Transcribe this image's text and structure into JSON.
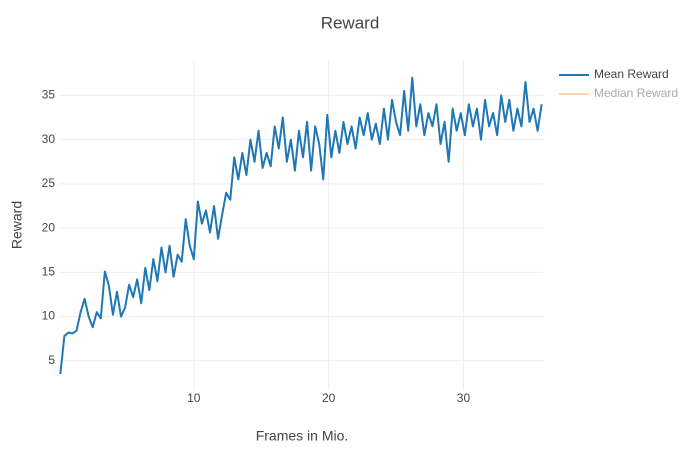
{
  "chart_data": {
    "type": "line",
    "title": "Reward",
    "x_label": "Frames in Mio.",
    "y_label": "Reward",
    "xlim": [
      0,
      35.9
    ],
    "ylim": [
      1.7,
      39
    ],
    "xticks": [
      10,
      20,
      30
    ],
    "yticks": [
      5,
      10,
      15,
      20,
      25,
      30,
      35
    ],
    "grid": true,
    "legend_position": "top-right",
    "x": [
      0.1,
      0.4,
      0.7,
      1.0,
      1.3,
      1.6,
      1.9,
      2.2,
      2.5,
      2.8,
      3.1,
      3.4,
      3.7,
      4.0,
      4.3,
      4.6,
      4.9,
      5.2,
      5.5,
      5.8,
      6.1,
      6.4,
      6.7,
      7.0,
      7.3,
      7.6,
      7.9,
      8.2,
      8.5,
      8.8,
      9.1,
      9.4,
      9.7,
      10.0,
      10.3,
      10.6,
      10.9,
      11.2,
      11.5,
      11.8,
      12.1,
      12.4,
      12.7,
      13.0,
      13.3,
      13.6,
      13.9,
      14.2,
      14.5,
      14.8,
      15.1,
      15.4,
      15.7,
      16.0,
      16.3,
      16.6,
      16.9,
      17.2,
      17.5,
      17.8,
      18.1,
      18.4,
      18.7,
      19.0,
      19.3,
      19.6,
      19.9,
      20.2,
      20.5,
      20.8,
      21.1,
      21.4,
      21.7,
      22.0,
      22.3,
      22.6,
      22.9,
      23.2,
      23.5,
      23.8,
      24.1,
      24.4,
      24.7,
      25.0,
      25.3,
      25.6,
      25.9,
      26.2,
      26.5,
      26.8,
      27.1,
      27.4,
      27.7,
      28.0,
      28.3,
      28.6,
      28.9,
      29.2,
      29.5,
      29.8,
      30.1,
      30.4,
      30.7,
      31.0,
      31.3,
      31.6,
      31.9,
      32.2,
      32.5,
      32.8,
      33.1,
      33.4,
      33.7,
      34.0,
      34.3,
      34.6,
      34.9,
      35.2,
      35.5,
      35.8
    ],
    "series": [
      {
        "name": "Mean Reward",
        "color": "#1f77b4",
        "values": [
          3.5,
          7.8,
          8.2,
          8.1,
          8.4,
          10.5,
          12.0,
          10.0,
          8.8,
          10.5,
          9.8,
          15.1,
          13.5,
          10.2,
          12.8,
          10.0,
          11.0,
          13.6,
          12.2,
          14.2,
          11.5,
          15.5,
          13.0,
          16.5,
          14.0,
          17.8,
          15.0,
          18.0,
          14.5,
          17.0,
          16.2,
          21.0,
          18.0,
          16.5,
          23.0,
          20.5,
          22.0,
          19.5,
          22.5,
          18.8,
          21.5,
          24.0,
          23.2,
          28.0,
          25.5,
          28.5,
          26.0,
          30.0,
          27.5,
          31.0,
          26.8,
          28.5,
          27.0,
          31.5,
          29.0,
          32.5,
          27.5,
          30.0,
          26.5,
          31.0,
          28.0,
          32.0,
          26.5,
          31.5,
          29.5,
          25.5,
          32.8,
          28.0,
          31.0,
          28.5,
          32.0,
          29.5,
          31.5,
          29.0,
          32.5,
          30.5,
          33.0,
          30.0,
          31.8,
          29.5,
          33.5,
          30.0,
          34.5,
          32.0,
          30.5,
          35.5,
          31.0,
          37.0,
          31.5,
          34.0,
          30.5,
          33.0,
          31.5,
          34.0,
          29.5,
          32.0,
          27.5,
          33.5,
          31.0,
          33.0,
          30.5,
          34.0,
          31.5,
          33.5,
          30.0,
          34.5,
          31.5,
          33.0,
          30.5,
          35.0,
          32.0,
          34.5,
          31.0,
          33.5,
          31.5,
          36.5,
          32.0,
          33.5,
          31.0,
          34.0
        ]
      },
      {
        "name": "Median Reward",
        "color": "#ffbb78",
        "visible": "legendonly"
      }
    ]
  }
}
